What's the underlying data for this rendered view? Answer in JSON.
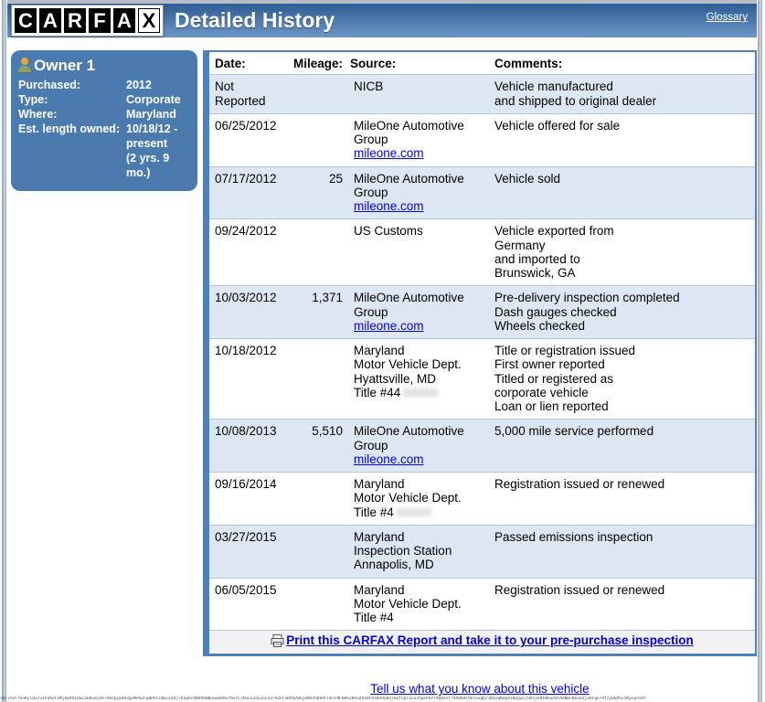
{
  "page": {
    "title": "Detailed History",
    "glossary_label": "Glossary",
    "tell_us_label": "Tell us what you know about this vehicle",
    "footer_hash": "3BF7%2F7SnKyiQx2vIA3%2FxMj604O1nEEaE8ueide!Xmcpyemd3gvNe%2FpBPHTLNuLLeOjsVayOcd0O9eBBnwu8d9Gr6GfCTKGCoZoG1oCxvr9ZEFvDA%2BEyd04zhb8XFFWlFNFK8%2BOxXV10FPZ059xbQ7mZYcplsLu3tpePEPTXbBZxfr9AbKHl9eiexgD21KOZqK0yU1NZpwijOAcvsDENvSeVtAANDcKX3dxj3HFge79fzyUqPhJ5KpvynxAf"
  },
  "logo": {
    "letters": [
      "C",
      "A",
      "R",
      "F",
      "A",
      "X"
    ],
    "inverted_index": 5
  },
  "colors": {
    "header_gradient_top": "#2d5c94",
    "header_gradient_bottom": "#6d96c5",
    "owner_box": "#4b7bae",
    "table_border": "#4e80ba",
    "alt_row": "#dde7f3",
    "link_blue": "#0000ee"
  },
  "owner": {
    "title": "Owner 1",
    "fields": [
      {
        "label": "Purchased:",
        "value": "2012"
      },
      {
        "label": "Type:",
        "value": "Corporate"
      },
      {
        "label": "Where:",
        "value": "Maryland"
      },
      {
        "label": "Est. length owned:",
        "value": "10/18/12 -\npresent\n(2 yrs. 9 mo.)"
      }
    ]
  },
  "table": {
    "headers": {
      "date": "Date:",
      "mileage": "Mileage:",
      "source": "Source:",
      "comments": "Comments:"
    },
    "print_label": "Print this CARFAX Report and take it to your pre-purchase inspection",
    "rows": [
      {
        "date": [
          "Not",
          "Reported"
        ],
        "mileage": "",
        "source": [
          "NICB"
        ],
        "comments": [
          "Vehicle manufactured",
          "and shipped to original dealer"
        ]
      },
      {
        "date": [
          "06/25/2012"
        ],
        "mileage": "",
        "source": [
          "MileOne Automotive",
          "Group",
          {
            "link": "mileone.com"
          }
        ],
        "comments": [
          "Vehicle offered for sale"
        ]
      },
      {
        "date": [
          "07/17/2012"
        ],
        "mileage": "25",
        "source": [
          "MileOne Automotive",
          "Group",
          {
            "link": "mileone.com"
          }
        ],
        "comments": [
          "Vehicle sold"
        ]
      },
      {
        "date": [
          "09/24/2012"
        ],
        "mileage": "",
        "source": [
          "US Customs"
        ],
        "comments": [
          "Vehicle exported from",
          "Germany",
          "and imported to",
          "Brunswick, GA"
        ]
      },
      {
        "date": [
          "10/03/2012"
        ],
        "mileage": "1,371",
        "source": [
          "MileOne Automotive",
          "Group",
          {
            "link": "mileone.com"
          }
        ],
        "comments": [
          "Pre-delivery inspection completed",
          "Dash gauges checked",
          "Wheels checked"
        ]
      },
      {
        "date": [
          "10/18/2012"
        ],
        "mileage": "",
        "source": [
          "Maryland",
          "Motor Vehicle Dept.",
          "Hyattsville, MD",
          {
            "text": "Title #44",
            "redacted": true
          }
        ],
        "comments": [
          "Title or registration issued",
          "First owner reported",
          "Titled or registered as",
          "corporate vehicle",
          "Loan or lien reported"
        ]
      },
      {
        "date": [
          "10/08/2013"
        ],
        "mileage": "5,510",
        "source": [
          "MileOne Automotive",
          "Group",
          {
            "link": "mileone.com"
          }
        ],
        "comments": [
          "5,000 mile service performed"
        ]
      },
      {
        "date": [
          "09/16/2014"
        ],
        "mileage": "",
        "source": [
          "Maryland",
          "Motor Vehicle Dept.",
          {
            "text": "Title #4",
            "redacted": true
          }
        ],
        "comments": [
          "Registration issued or renewed"
        ]
      },
      {
        "date": [
          "03/27/2015"
        ],
        "mileage": "",
        "source": [
          "Maryland",
          "Inspection Station",
          "Annapolis, MD"
        ],
        "comments": [
          "Passed emissions inspection"
        ]
      },
      {
        "date": [
          "06/05/2015"
        ],
        "mileage": "",
        "source": [
          "Maryland",
          "Motor Vehicle Dept.",
          "Title #4"
        ],
        "comments": [
          "Registration issued or renewed"
        ]
      }
    ]
  }
}
